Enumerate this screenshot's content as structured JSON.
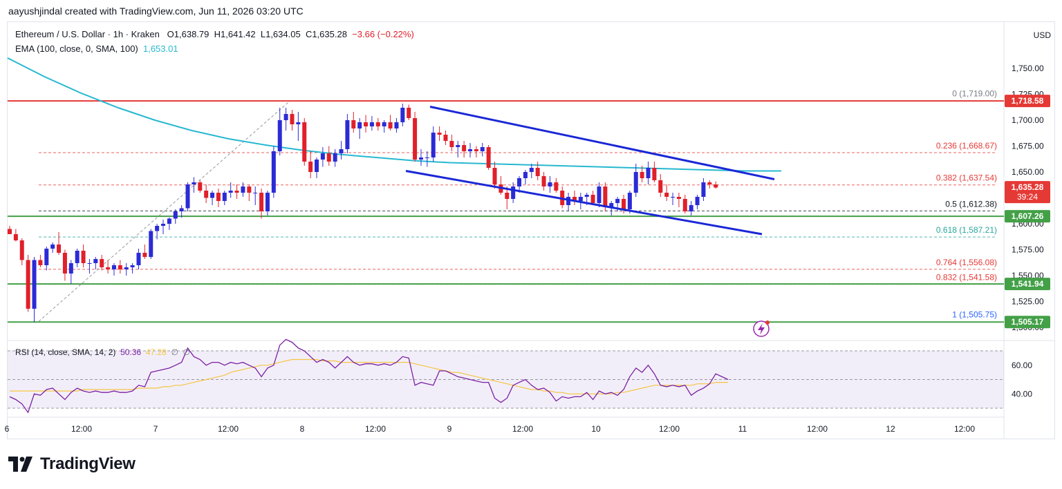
{
  "header": {
    "text": "aayushjindal created with TradingView.com, Jun 11, 2026 03:20 UTC"
  },
  "legend": {
    "symbol": "Ethereum / U.S. Dollar · 1h · Kraken",
    "o_label": "O",
    "o": "1,638.79",
    "h_label": "H",
    "h": "1,641.42",
    "l_label": "L",
    "l": "1,634.05",
    "c_label": "C",
    "c": "1,635.28",
    "change": "−3.66 (−0.22%)",
    "ema_label": "EMA (100, close, 0, SMA, 100)",
    "ema_value": "1,653.01"
  },
  "rsi_legend": {
    "label": "RSI (14, close, SMA, 14, 2)",
    "value1": "50.36",
    "value2": "47.28",
    "value3": "∅",
    "value4": "∅"
  },
  "currency": "USD",
  "brand": {
    "name": "TradingView",
    "logo": "tradingview-logo-icon"
  },
  "colors": {
    "up": "#2b2bd6",
    "down": "#e0202a",
    "ema": "#26b8d0",
    "rsi": "#7b1fa2",
    "rsi_ma": "#f5c542",
    "resistance": "#e53935",
    "support": "#43a047",
    "channel": "#1a27d6"
  },
  "chart_data": {
    "type": "candlestick",
    "symbol": "Ethereum / U.S. Dollar",
    "interval": "1h",
    "exchange": "Kraken",
    "y_ticks": [
      "1,750.00",
      "1,725.00",
      "1,700.00",
      "1,675.00",
      "1,650.00",
      "1,600.00",
      "1,575.00",
      "1,550.00",
      "1,525.00",
      "1,500.00"
    ],
    "x_ticks": [
      "6",
      "12:00",
      "7",
      "12:00",
      "8",
      "12:00",
      "9",
      "12:00",
      "10",
      "12:00",
      "11",
      "12:00",
      "12",
      "12:00"
    ],
    "price_tags": [
      {
        "label": "1,718.58",
        "value": 1718.58,
        "color": "#e53935"
      },
      {
        "label": "1,635.28",
        "sub": "39:24",
        "value": 1635.28,
        "color": "#e53935"
      },
      {
        "label": "1,607.26",
        "value": 1607.26,
        "color": "#43a047"
      },
      {
        "label": "1,541.94",
        "value": 1541.94,
        "color": "#43a047"
      },
      {
        "label": "1,505.17",
        "value": 1505.17,
        "color": "#43a047"
      }
    ],
    "horizontal_lines": [
      {
        "name": "resistance",
        "value": 1718.58
      },
      {
        "name": "support",
        "value": 1607.26
      },
      {
        "name": "support",
        "value": 1541.94
      },
      {
        "name": "support",
        "value": 1505.17
      }
    ],
    "fib_levels": [
      {
        "label": "0 (1,719.00)",
        "value": 1719.0,
        "color": "#787b86"
      },
      {
        "label": "0.236 (1,668.67)",
        "value": 1668.67,
        "color": "#e53935"
      },
      {
        "label": "0.382 (1,637.54)",
        "value": 1637.54,
        "color": "#e53935"
      },
      {
        "label": "0.5 (1,612.38)",
        "value": 1612.38,
        "color": "#131722"
      },
      {
        "label": "0.618 (1,587.21)",
        "value": 1587.21,
        "color": "#26a69a"
      },
      {
        "label": "0.764 (1,556.08)",
        "value": 1556.08,
        "color": "#e53935"
      },
      {
        "label": "0.832 (1,541.58)",
        "value": 1541.58,
        "color": "#e53935"
      },
      {
        "label": "1 (1,505.75)",
        "value": 1505.75,
        "color": "#2962ff"
      }
    ],
    "candles": [
      [
        1595,
        1598,
        1590,
        1590
      ],
      [
        1590,
        1595,
        1583,
        1584
      ],
      [
        1584,
        1586,
        1560,
        1565
      ],
      [
        1565,
        1570,
        1515,
        1518
      ],
      [
        1518,
        1568,
        1505,
        1565
      ],
      [
        1565,
        1570,
        1558,
        1560
      ],
      [
        1560,
        1578,
        1555,
        1576
      ],
      [
        1576,
        1582,
        1572,
        1580
      ],
      [
        1580,
        1592,
        1570,
        1572
      ],
      [
        1572,
        1575,
        1545,
        1552
      ],
      [
        1552,
        1565,
        1542,
        1562
      ],
      [
        1562,
        1576,
        1558,
        1574
      ],
      [
        1574,
        1580,
        1558,
        1562
      ],
      [
        1562,
        1566,
        1552,
        1562
      ],
      [
        1562,
        1568,
        1556,
        1566
      ],
      [
        1566,
        1570,
        1555,
        1558
      ],
      [
        1558,
        1565,
        1552,
        1556
      ],
      [
        1556,
        1562,
        1550,
        1560
      ],
      [
        1560,
        1565,
        1552,
        1556
      ],
      [
        1556,
        1562,
        1550,
        1558
      ],
      [
        1558,
        1562,
        1552,
        1560
      ],
      [
        1560,
        1576,
        1556,
        1572
      ],
      [
        1572,
        1580,
        1566,
        1568
      ],
      [
        1568,
        1595,
        1566,
        1593
      ],
      [
        1593,
        1600,
        1585,
        1598
      ],
      [
        1598,
        1604,
        1590,
        1600
      ],
      [
        1600,
        1606,
        1594,
        1605
      ],
      [
        1605,
        1614,
        1600,
        1612
      ],
      [
        1612,
        1618,
        1606,
        1615
      ],
      [
        1615,
        1640,
        1612,
        1638
      ],
      [
        1638,
        1645,
        1630,
        1640
      ],
      [
        1640,
        1642,
        1630,
        1632
      ],
      [
        1632,
        1638,
        1620,
        1625
      ],
      [
        1625,
        1632,
        1618,
        1630
      ],
      [
        1630,
        1634,
        1616,
        1622
      ],
      [
        1622,
        1632,
        1618,
        1630
      ],
      [
        1630,
        1640,
        1625,
        1632
      ],
      [
        1632,
        1638,
        1624,
        1630
      ],
      [
        1630,
        1640,
        1626,
        1636
      ],
      [
        1636,
        1638,
        1622,
        1630
      ],
      [
        1630,
        1636,
        1618,
        1630
      ],
      [
        1630,
        1634,
        1605,
        1612
      ],
      [
        1612,
        1632,
        1608,
        1630
      ],
      [
        1630,
        1675,
        1625,
        1670
      ],
      [
        1670,
        1712,
        1666,
        1700
      ],
      [
        1700,
        1712,
        1690,
        1706
      ],
      [
        1706,
        1710,
        1690,
        1696
      ],
      [
        1696,
        1708,
        1680,
        1698
      ],
      [
        1698,
        1702,
        1656,
        1660
      ],
      [
        1660,
        1670,
        1644,
        1650
      ],
      [
        1650,
        1664,
        1644,
        1662
      ],
      [
        1662,
        1674,
        1655,
        1668
      ],
      [
        1668,
        1675,
        1656,
        1660
      ],
      [
        1660,
        1672,
        1655,
        1668
      ],
      [
        1668,
        1680,
        1662,
        1672
      ],
      [
        1672,
        1706,
        1668,
        1700
      ],
      [
        1700,
        1708,
        1688,
        1692
      ],
      [
        1692,
        1702,
        1682,
        1698
      ],
      [
        1698,
        1705,
        1688,
        1694
      ],
      [
        1694,
        1704,
        1690,
        1698
      ],
      [
        1698,
        1702,
        1690,
        1694
      ],
      [
        1694,
        1700,
        1688,
        1698
      ],
      [
        1698,
        1705,
        1690,
        1692
      ],
      [
        1692,
        1702,
        1688,
        1698
      ],
      [
        1698,
        1716,
        1694,
        1712
      ],
      [
        1712,
        1715,
        1700,
        1702
      ],
      [
        1702,
        1708,
        1660,
        1662
      ],
      [
        1662,
        1672,
        1656,
        1664
      ],
      [
        1664,
        1670,
        1655,
        1664
      ],
      [
        1664,
        1694,
        1660,
        1688
      ],
      [
        1688,
        1694,
        1680,
        1686
      ],
      [
        1686,
        1690,
        1676,
        1680
      ],
      [
        1680,
        1686,
        1670,
        1674
      ],
      [
        1674,
        1680,
        1664,
        1676
      ],
      [
        1676,
        1680,
        1664,
        1670
      ],
      [
        1670,
        1678,
        1664,
        1672
      ],
      [
        1672,
        1675,
        1664,
        1670
      ],
      [
        1670,
        1678,
        1665,
        1674
      ],
      [
        1674,
        1676,
        1652,
        1654
      ],
      [
        1654,
        1660,
        1634,
        1638
      ],
      [
        1638,
        1646,
        1628,
        1630
      ],
      [
        1630,
        1636,
        1614,
        1624
      ],
      [
        1624,
        1640,
        1620,
        1636
      ],
      [
        1636,
        1646,
        1630,
        1644
      ],
      [
        1644,
        1652,
        1638,
        1650
      ],
      [
        1650,
        1658,
        1644,
        1654
      ],
      [
        1654,
        1660,
        1642,
        1646
      ],
      [
        1646,
        1650,
        1632,
        1636
      ],
      [
        1636,
        1646,
        1630,
        1640
      ],
      [
        1640,
        1644,
        1630,
        1632
      ],
      [
        1632,
        1636,
        1615,
        1618
      ],
      [
        1618,
        1630,
        1612,
        1626
      ],
      [
        1626,
        1632,
        1618,
        1622
      ],
      [
        1622,
        1630,
        1614,
        1626
      ],
      [
        1626,
        1630,
        1618,
        1628
      ],
      [
        1628,
        1632,
        1618,
        1620
      ],
      [
        1620,
        1640,
        1616,
        1636
      ],
      [
        1636,
        1640,
        1612,
        1616
      ],
      [
        1616,
        1622,
        1608,
        1620
      ],
      [
        1620,
        1626,
        1612,
        1624
      ],
      [
        1624,
        1628,
        1610,
        1614
      ],
      [
        1614,
        1632,
        1610,
        1630
      ],
      [
        1630,
        1658,
        1626,
        1650
      ],
      [
        1650,
        1656,
        1640,
        1644
      ],
      [
        1644,
        1660,
        1638,
        1654
      ],
      [
        1654,
        1660,
        1640,
        1642
      ],
      [
        1642,
        1648,
        1626,
        1630
      ],
      [
        1630,
        1638,
        1622,
        1626
      ],
      [
        1626,
        1630,
        1618,
        1626
      ],
      [
        1626,
        1630,
        1616,
        1624
      ],
      [
        1624,
        1628,
        1610,
        1612
      ],
      [
        1612,
        1622,
        1608,
        1618
      ],
      [
        1618,
        1628,
        1614,
        1626
      ],
      [
        1626,
        1644,
        1622,
        1640
      ],
      [
        1640,
        1642,
        1634,
        1638
      ],
      [
        1638,
        1641,
        1634,
        1635
      ]
    ],
    "ema": [
      1760,
      1742,
      1726,
      1712,
      1700,
      1690,
      1682,
      1676,
      1671,
      1667,
      1664,
      1661,
      1659,
      1658,
      1657,
      1656,
      1655,
      1654,
      1653,
      1652,
      1651,
      1651
    ],
    "rsi": {
      "ticks": [
        "60.00",
        "40.00"
      ],
      "bands": {
        "upper": 70,
        "middle": 50,
        "lower": 30
      },
      "values": [
        38,
        36,
        33,
        27,
        40,
        39,
        43,
        44,
        40,
        36,
        41,
        44,
        42,
        41,
        42,
        41,
        41,
        42,
        41,
        41,
        42,
        46,
        45,
        55,
        56,
        57,
        58,
        60,
        62,
        72,
        66,
        64,
        60,
        62,
        62,
        60,
        62,
        61,
        62,
        60,
        58,
        52,
        58,
        60,
        74,
        78,
        76,
        72,
        70,
        66,
        62,
        64,
        62,
        58,
        62,
        66,
        62,
        60,
        61,
        61,
        60,
        61,
        60,
        62,
        66,
        65,
        46,
        48,
        47,
        46,
        56,
        56,
        54,
        52,
        51,
        50,
        49,
        48,
        48,
        37,
        34,
        37,
        46,
        48,
        50,
        46,
        43,
        44,
        41,
        35,
        38,
        37,
        38,
        38,
        41,
        36,
        42,
        40,
        41,
        39,
        43,
        52,
        58,
        55,
        60,
        54,
        46,
        45,
        46,
        45,
        46,
        39,
        42,
        44,
        47,
        54,
        52,
        50
      ],
      "ma_values": [
        42,
        42,
        42,
        42,
        42,
        42,
        42,
        42,
        42,
        42,
        42,
        42,
        43,
        43,
        43,
        43,
        43,
        43,
        43,
        43,
        43,
        44,
        44,
        44,
        44,
        45,
        45,
        46,
        46,
        47,
        48,
        49,
        50,
        51,
        52,
        53,
        55,
        56,
        57,
        58,
        59,
        60,
        60,
        61,
        62,
        63,
        64,
        64,
        64,
        64,
        64,
        63,
        63,
        63,
        62,
        62,
        62,
        62,
        62,
        62,
        62,
        62,
        62,
        62,
        62,
        62,
        61,
        60,
        59,
        58,
        57,
        56,
        55,
        55,
        54,
        53,
        52,
        51,
        50,
        49,
        48,
        47,
        46,
        45,
        44,
        43,
        43,
        42,
        42,
        41,
        41,
        40,
        40,
        40,
        40,
        40,
        40,
        40,
        40,
        41,
        41,
        42,
        43,
        44,
        45,
        46,
        46,
        46,
        46,
        46,
        46,
        46,
        47,
        47,
        47,
        48,
        48,
        48
      ]
    }
  }
}
